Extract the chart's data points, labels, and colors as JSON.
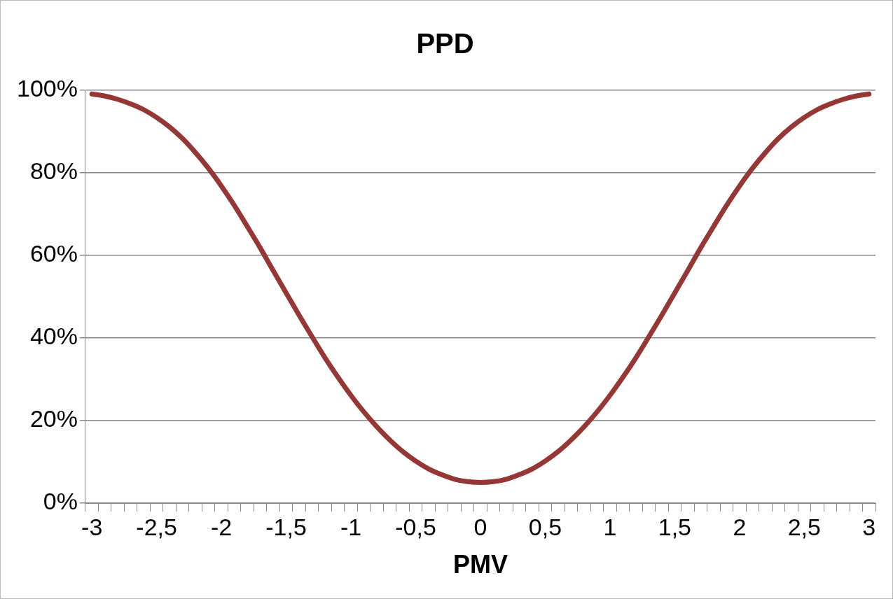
{
  "chart_data": {
    "type": "line",
    "title": "PPD",
    "xlabel": "PMV",
    "categories": [
      "-3",
      null,
      null,
      null,
      null,
      "-2,5",
      null,
      null,
      null,
      null,
      "-2",
      null,
      null,
      null,
      null,
      "-1,5",
      null,
      null,
      null,
      null,
      "-1",
      null,
      null,
      null,
      null,
      "-0,5",
      null,
      null,
      null,
      null,
      "0",
      null,
      null,
      null,
      null,
      "0,5",
      null,
      null,
      null,
      null,
      "1",
      null,
      null,
      null,
      null,
      "1,5",
      null,
      null,
      null,
      null,
      "2",
      null,
      null,
      null,
      null,
      "2,5",
      null,
      null,
      null,
      null,
      "3"
    ],
    "series": [
      {
        "color": "#953735",
        "values": [
          99.1,
          98.6,
          97.8,
          96.7,
          95.3,
          93.4,
          91.1,
          88.3,
          84.9,
          81.1,
          76.8,
          72.1,
          67.0,
          61.8,
          56.3,
          50.9,
          45.5,
          40.3,
          35.2,
          30.5,
          26.1,
          22.1,
          18.5,
          15.3,
          12.5,
          10.2,
          8.3,
          6.9,
          5.8,
          5.2,
          5.0,
          5.2,
          5.8,
          6.9,
          8.3,
          10.2,
          12.5,
          15.3,
          18.5,
          22.1,
          26.1,
          30.5,
          35.2,
          40.3,
          45.5,
          50.9,
          56.3,
          61.8,
          67.0,
          72.1,
          76.8,
          81.1,
          84.9,
          88.3,
          91.1,
          93.4,
          95.3,
          96.7,
          97.8,
          98.6,
          99.1
        ]
      }
    ],
    "ylim": [
      0,
      100
    ],
    "yticks": [
      {
        "value": 0,
        "label": "0%"
      },
      {
        "value": 20,
        "label": "20%"
      },
      {
        "value": 40,
        "label": "40%"
      },
      {
        "value": 60,
        "label": "60%"
      },
      {
        "value": 80,
        "label": "80%"
      },
      {
        "value": 100,
        "label": "100%"
      }
    ],
    "grid": "y",
    "legend": false,
    "marker": "none",
    "line_style": "solid"
  }
}
